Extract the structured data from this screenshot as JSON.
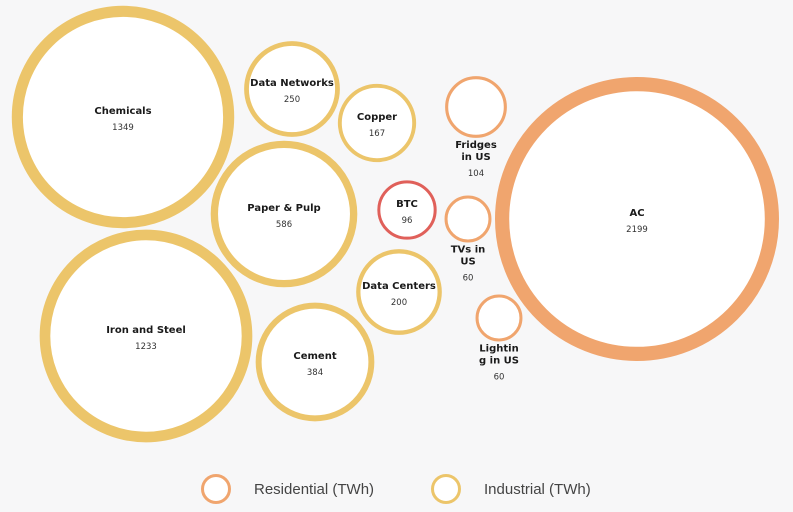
{
  "colors": {
    "Residential": "#f0a56e",
    "Industrial": "#ecc56a",
    "highlight": "#e0605a",
    "fill": "#ffffff",
    "background": "#f7f7f8"
  },
  "legend": {
    "residential_label": "Residential (TWh)",
    "industrial_label": "Industrial (TWh)"
  },
  "chart_data": {
    "type": "bubble",
    "unit": "TWh",
    "legend_position": "bottom-center",
    "items": [
      {
        "name": "Chemicals",
        "value": 1349,
        "group": "Industrial"
      },
      {
        "name": "Iron and Steel",
        "value": 1233,
        "group": "Industrial"
      },
      {
        "name": "Paper & Pulp",
        "value": 586,
        "group": "Industrial"
      },
      {
        "name": "Cement",
        "value": 384,
        "group": "Industrial"
      },
      {
        "name": "Data Networks",
        "value": 250,
        "group": "Industrial"
      },
      {
        "name": "Data Centers",
        "value": 200,
        "group": "Industrial"
      },
      {
        "name": "Copper",
        "value": 167,
        "group": "Industrial"
      },
      {
        "name": "BTC",
        "value": 96,
        "group": "Highlight"
      },
      {
        "name": "Fridges in US",
        "value": 104,
        "group": "Residential"
      },
      {
        "name": "TVs in US",
        "value": 60,
        "group": "Residential"
      },
      {
        "name": "Lighting in US",
        "value": 60,
        "group": "Residential"
      },
      {
        "name": "AC",
        "value": 2199,
        "group": "Residential"
      }
    ]
  }
}
